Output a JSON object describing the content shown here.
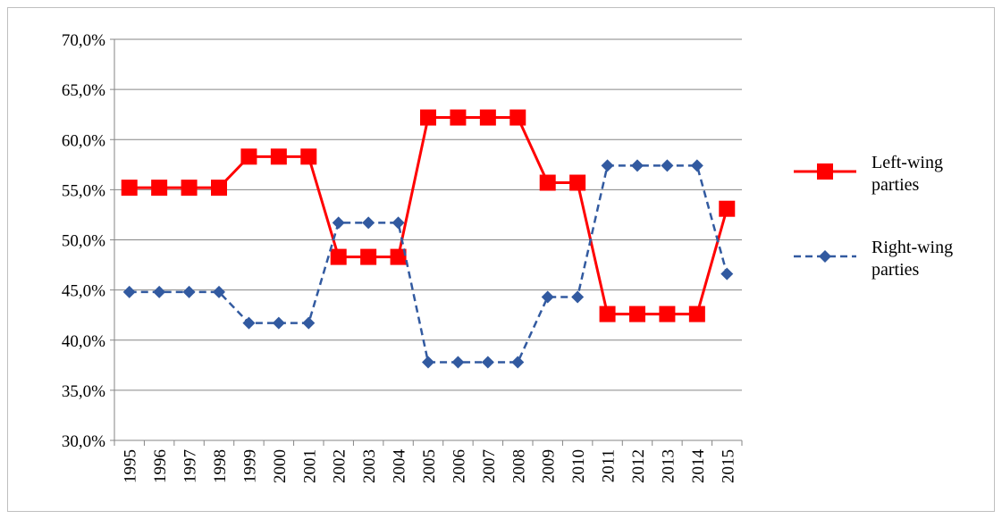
{
  "chart_data": {
    "type": "line",
    "categories": [
      "1995",
      "1996",
      "1997",
      "1998",
      "1999",
      "2000",
      "2001",
      "2002",
      "2003",
      "2004",
      "2005",
      "2006",
      "2007",
      "2008",
      "2009",
      "2010",
      "2011",
      "2012",
      "2013",
      "2014",
      "2015"
    ],
    "series": [
      {
        "name": "Left-wing parties",
        "color": "#ff0000",
        "marker": "square",
        "dash": false,
        "values": [
          55.2,
          55.2,
          55.2,
          55.2,
          58.3,
          58.3,
          58.3,
          48.3,
          48.3,
          48.3,
          62.2,
          62.2,
          62.2,
          62.2,
          55.7,
          55.7,
          42.6,
          42.6,
          42.6,
          42.6,
          53.1
        ]
      },
      {
        "name": "Right-wing parties",
        "color": "#325aa0",
        "marker": "diamond",
        "dash": true,
        "values": [
          44.8,
          44.8,
          44.8,
          44.8,
          41.7,
          41.7,
          41.7,
          51.7,
          51.7,
          51.7,
          37.8,
          37.8,
          37.8,
          37.8,
          44.3,
          44.3,
          57.4,
          57.4,
          57.4,
          57.4,
          46.6
        ]
      }
    ],
    "ylim": [
      30,
      70
    ],
    "yticks": [
      {
        "value": 30,
        "label": "30,0%"
      },
      {
        "value": 35,
        "label": "35,0%"
      },
      {
        "value": 40,
        "label": "40,0%"
      },
      {
        "value": 45,
        "label": "45,0%"
      },
      {
        "value": 50,
        "label": "50,0%"
      },
      {
        "value": 55,
        "label": "55,0%"
      },
      {
        "value": 60,
        "label": "60,0%"
      },
      {
        "value": 65,
        "label": "65,0%"
      },
      {
        "value": 70,
        "label": "70,0%"
      }
    ],
    "grid": true,
    "legend": "right"
  }
}
